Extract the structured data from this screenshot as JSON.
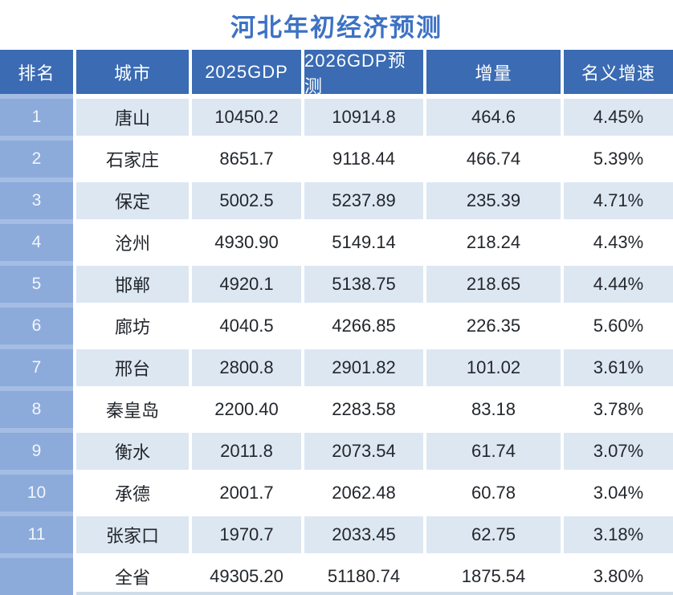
{
  "title": "河北年初经济预测",
  "colors": {
    "title_color": "#3d72c4",
    "header_bg": "#3a6bb3",
    "band_bg": "#8cabdb",
    "row_alt_bg": "#dde7f2",
    "text_color": "#23272c",
    "strip_color": "#cfdce9"
  },
  "chart_data": {
    "type": "table",
    "title": "河北年初经济预测",
    "columns": [
      "排名",
      "城市",
      "2025GDP",
      "2026GDP预测",
      "增量",
      "名义增速"
    ],
    "rows": [
      [
        "1",
        "唐山",
        "10450.2",
        "10914.8",
        "464.6",
        "4.45%"
      ],
      [
        "2",
        "石家庄",
        "8651.7",
        "9118.44",
        "466.74",
        "5.39%"
      ],
      [
        "3",
        "保定",
        "5002.5",
        "5237.89",
        "235.39",
        "4.71%"
      ],
      [
        "4",
        "沧州",
        "4930.90",
        "5149.14",
        "218.24",
        "4.43%"
      ],
      [
        "5",
        "邯郸",
        "4920.1",
        "5138.75",
        "218.65",
        "4.44%"
      ],
      [
        "6",
        "廊坊",
        "4040.5",
        "4266.85",
        "226.35",
        "5.60%"
      ],
      [
        "7",
        "邢台",
        "2800.8",
        "2901.82",
        "101.02",
        "3.61%"
      ],
      [
        "8",
        "秦皇岛",
        "2200.40",
        "2283.58",
        "83.18",
        "3.78%"
      ],
      [
        "9",
        "衡水",
        "2011.8",
        "2073.54",
        "61.74",
        "3.07%"
      ],
      [
        "10",
        "承德",
        "2001.7",
        "2062.48",
        "60.78",
        "3.04%"
      ],
      [
        "11",
        "张家口",
        "1970.7",
        "2033.45",
        "62.75",
        "3.18%"
      ],
      [
        "",
        "全省",
        "49305.20",
        "51180.74",
        "1875.54",
        "3.80%"
      ]
    ]
  }
}
